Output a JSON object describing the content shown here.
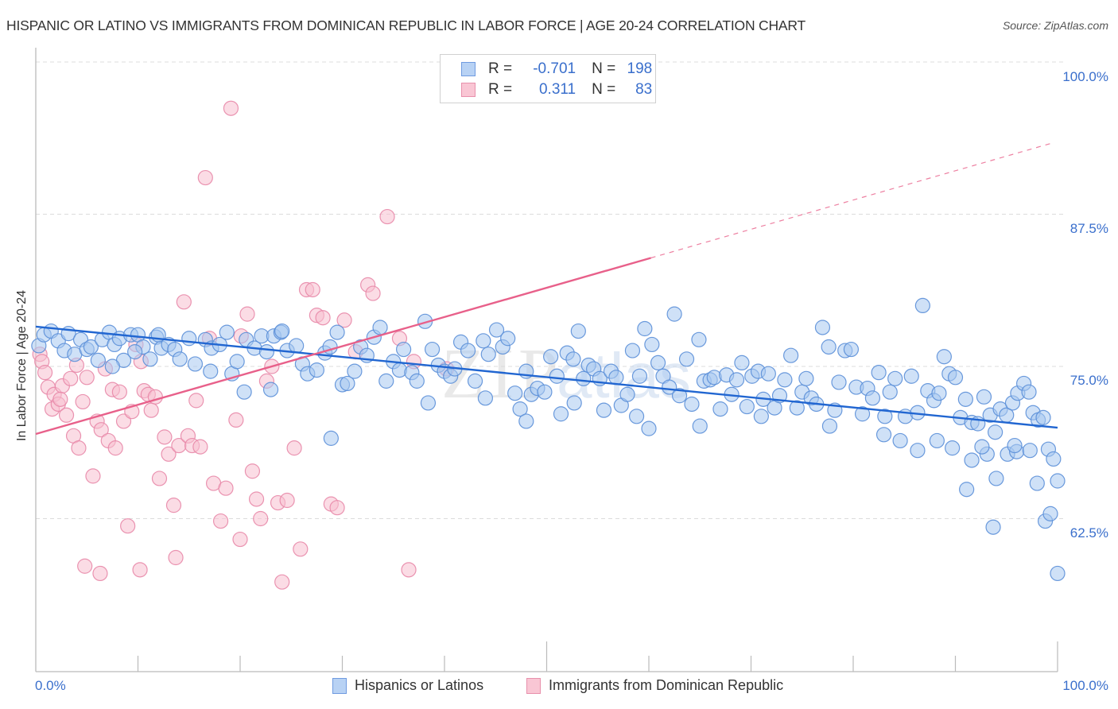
{
  "header": {
    "title": "HISPANIC OR LATINO VS IMMIGRANTS FROM DOMINICAN REPUBLIC IN LABOR FORCE | AGE 20-24 CORRELATION CHART",
    "source": "Source: ZipAtlas.com"
  },
  "legend_box": {
    "rows": [
      {
        "r_label": "R =",
        "r_value": "-0.701",
        "n_label": "N =",
        "n_value": "198"
      },
      {
        "r_label": "R =",
        "r_value": "0.311",
        "n_label": "N =",
        "n_value": "83"
      }
    ]
  },
  "colors": {
    "blue_fill": "#a8c8f0",
    "blue_stroke": "#5b8fd8",
    "blue_line": "#2166d1",
    "pink_fill": "#f8c0d0",
    "pink_stroke": "#e888a8",
    "pink_line": "#e8608a",
    "axis_text": "#3a6fcc"
  },
  "chart_data": {
    "type": "scatter",
    "title": "HISPANIC OR LATINO VS IMMIGRANTS FROM DOMINICAN REPUBLIC IN LABOR FORCE | AGE 20-24 CORRELATION CHART",
    "xlabel": "",
    "ylabel": "In Labor Force | Age 20-24",
    "xlim": [
      0,
      100
    ],
    "ylim": [
      49.9,
      101.2
    ],
    "x_tick_labels": [
      "0.0%",
      "100.0%"
    ],
    "y_ticks": [
      100.0,
      87.5,
      75.0,
      62.5
    ],
    "y_tick_labels": [
      "100.0%",
      "87.5%",
      "75.0%",
      "62.5%"
    ],
    "grid": true,
    "legend_position": "bottom",
    "watermark": "ZIPatlas",
    "series": [
      {
        "name": "Hispanics or Latinos",
        "R": -0.701,
        "N": 198,
        "trend": {
          "x": [
            0,
            100
          ],
          "y": [
            78.27,
            69.97
          ],
          "style": "solid"
        },
        "points": [
          [
            0.3,
            76.7
          ],
          [
            0.8,
            77.6
          ],
          [
            1.5,
            77.9
          ],
          [
            2.2,
            77.1
          ],
          [
            2.8,
            76.3
          ],
          [
            3.2,
            77.7
          ],
          [
            3.8,
            76.0
          ],
          [
            4.4,
            77.2
          ],
          [
            5.0,
            76.4
          ],
          [
            5.4,
            76.6
          ],
          [
            6.1,
            75.5
          ],
          [
            6.5,
            77.2
          ],
          [
            7.2,
            77.8
          ],
          [
            7.7,
            76.8
          ],
          [
            8.2,
            77.3
          ],
          [
            8.6,
            75.5
          ],
          [
            9.3,
            77.6
          ],
          [
            10.0,
            77.6
          ],
          [
            10.5,
            76.6
          ],
          [
            11.2,
            75.6
          ],
          [
            11.8,
            77.4
          ],
          [
            12.3,
            76.5
          ],
          [
            13.0,
            76.8
          ],
          [
            13.6,
            76.4
          ],
          [
            14.1,
            75.6
          ],
          [
            15.0,
            77.3
          ],
          [
            15.6,
            75.2
          ],
          [
            16.6,
            77.2
          ],
          [
            17.2,
            76.5
          ],
          [
            18.0,
            76.8
          ],
          [
            18.7,
            77.8
          ],
          [
            19.2,
            74.4
          ],
          [
            19.7,
            75.4
          ],
          [
            20.6,
            77.2
          ],
          [
            21.4,
            76.5
          ],
          [
            22.1,
            77.5
          ],
          [
            22.6,
            76.2
          ],
          [
            23.3,
            77.5
          ],
          [
            24.0,
            77.8
          ],
          [
            24.6,
            76.3
          ],
          [
            25.5,
            76.7
          ],
          [
            26.1,
            75.2
          ],
          [
            26.6,
            74.4
          ],
          [
            27.5,
            74.7
          ],
          [
            28.3,
            76.1
          ],
          [
            28.8,
            76.6
          ],
          [
            29.5,
            77.8
          ],
          [
            30.0,
            73.5
          ],
          [
            30.5,
            73.6
          ],
          [
            31.2,
            74.6
          ],
          [
            31.8,
            76.6
          ],
          [
            32.4,
            75.9
          ],
          [
            33.1,
            77.4
          ],
          [
            33.7,
            78.2
          ],
          [
            34.3,
            73.8
          ],
          [
            35.0,
            75.4
          ],
          [
            35.6,
            74.7
          ],
          [
            36.0,
            76.4
          ],
          [
            36.8,
            74.5
          ],
          [
            37.3,
            73.8
          ],
          [
            38.1,
            78.7
          ],
          [
            38.8,
            76.4
          ],
          [
            39.4,
            75.1
          ],
          [
            40.0,
            74.6
          ],
          [
            40.6,
            74.2
          ],
          [
            41.0,
            74.8
          ],
          [
            41.6,
            77.0
          ],
          [
            42.3,
            76.3
          ],
          [
            43.0,
            73.8
          ],
          [
            43.8,
            77.1
          ],
          [
            44.3,
            76.0
          ],
          [
            45.1,
            78.0
          ],
          [
            45.7,
            76.6
          ],
          [
            46.2,
            77.3
          ],
          [
            46.9,
            72.8
          ],
          [
            47.4,
            71.5
          ],
          [
            48.0,
            74.6
          ],
          [
            48.5,
            72.7
          ],
          [
            49.1,
            73.2
          ],
          [
            49.8,
            72.9
          ],
          [
            50.4,
            75.8
          ],
          [
            51.0,
            74.2
          ],
          [
            51.4,
            71.1
          ],
          [
            52.0,
            76.1
          ],
          [
            52.6,
            75.6
          ],
          [
            53.1,
            77.9
          ],
          [
            53.6,
            74.0
          ],
          [
            54.1,
            75.1
          ],
          [
            54.6,
            74.8
          ],
          [
            55.2,
            74.0
          ],
          [
            55.6,
            71.4
          ],
          [
            56.3,
            74.6
          ],
          [
            56.8,
            74.1
          ],
          [
            57.3,
            71.8
          ],
          [
            57.9,
            72.7
          ],
          [
            58.4,
            76.3
          ],
          [
            59.1,
            74.2
          ],
          [
            59.6,
            78.1
          ],
          [
            60.3,
            76.8
          ],
          [
            60.9,
            75.3
          ],
          [
            61.4,
            74.2
          ],
          [
            62.0,
            73.3
          ],
          [
            62.5,
            79.3
          ],
          [
            63.0,
            72.6
          ],
          [
            63.7,
            75.6
          ],
          [
            64.2,
            71.9
          ],
          [
            64.9,
            77.2
          ],
          [
            65.4,
            73.8
          ],
          [
            66.0,
            73.9
          ],
          [
            66.4,
            74.1
          ],
          [
            67.0,
            71.5
          ],
          [
            67.6,
            74.3
          ],
          [
            68.1,
            72.7
          ],
          [
            68.6,
            73.9
          ],
          [
            69.1,
            75.3
          ],
          [
            69.6,
            71.7
          ],
          [
            70.1,
            74.2
          ],
          [
            70.7,
            74.6
          ],
          [
            71.2,
            72.3
          ],
          [
            71.7,
            74.4
          ],
          [
            72.3,
            71.6
          ],
          [
            72.8,
            72.6
          ],
          [
            73.3,
            73.9
          ],
          [
            73.9,
            75.9
          ],
          [
            74.5,
            71.6
          ],
          [
            75.0,
            72.9
          ],
          [
            75.4,
            74.0
          ],
          [
            75.9,
            72.4
          ],
          [
            76.4,
            71.9
          ],
          [
            77.0,
            78.2
          ],
          [
            77.6,
            76.6
          ],
          [
            78.2,
            71.4
          ],
          [
            78.6,
            73.7
          ],
          [
            79.2,
            76.3
          ],
          [
            79.8,
            76.4
          ],
          [
            80.3,
            73.3
          ],
          [
            80.9,
            71.1
          ],
          [
            81.4,
            73.2
          ],
          [
            81.9,
            72.4
          ],
          [
            82.5,
            74.5
          ],
          [
            83.1,
            70.9
          ],
          [
            83.6,
            72.9
          ],
          [
            84.1,
            74.0
          ],
          [
            84.6,
            68.9
          ],
          [
            85.1,
            70.9
          ],
          [
            85.7,
            74.2
          ],
          [
            86.3,
            71.2
          ],
          [
            86.8,
            80.0
          ],
          [
            87.3,
            73.0
          ],
          [
            87.9,
            72.2
          ],
          [
            88.4,
            72.8
          ],
          [
            88.9,
            75.8
          ],
          [
            89.4,
            74.4
          ],
          [
            90.0,
            74.1
          ],
          [
            90.5,
            70.8
          ],
          [
            91.0,
            72.3
          ],
          [
            91.6,
            70.4
          ],
          [
            92.2,
            70.3
          ],
          [
            92.8,
            72.5
          ],
          [
            93.4,
            71.0
          ],
          [
            93.9,
            69.6
          ],
          [
            94.4,
            71.5
          ],
          [
            95.0,
            71.0
          ],
          [
            95.6,
            72.0
          ],
          [
            96.1,
            72.8
          ],
          [
            96.7,
            73.6
          ],
          [
            97.2,
            72.9
          ],
          [
            97.6,
            71.2
          ],
          [
            98.1,
            70.6
          ],
          [
            98.6,
            70.8
          ],
          [
            99.1,
            68.2
          ],
          [
            99.6,
            67.4
          ],
          [
            100.0,
            65.6
          ],
          [
            91.6,
            67.3
          ],
          [
            93.1,
            67.8
          ],
          [
            94.0,
            65.8
          ],
          [
            95.1,
            67.8
          ],
          [
            96.0,
            68.0
          ],
          [
            97.3,
            68.1
          ],
          [
            98.0,
            65.4
          ],
          [
            98.8,
            62.3
          ],
          [
            99.3,
            62.9
          ],
          [
            100.0,
            58.0
          ],
          [
            93.7,
            61.8
          ],
          [
            95.8,
            68.5
          ],
          [
            91.1,
            64.9
          ],
          [
            92.6,
            68.4
          ],
          [
            89.7,
            68.3
          ],
          [
            88.2,
            68.9
          ],
          [
            86.3,
            68.1
          ],
          [
            28.9,
            69.1
          ],
          [
            20.4,
            72.9
          ],
          [
            24.1,
            77.9
          ],
          [
            12.0,
            77.6
          ],
          [
            9.7,
            76.2
          ],
          [
            7.5,
            75.0
          ],
          [
            17.1,
            74.6
          ],
          [
            23.0,
            73.1
          ],
          [
            44.0,
            72.4
          ],
          [
            38.4,
            72.0
          ],
          [
            52.7,
            72.0
          ],
          [
            58.8,
            70.9
          ],
          [
            65.0,
            70.1
          ],
          [
            71.0,
            70.9
          ],
          [
            77.7,
            70.1
          ],
          [
            83.0,
            69.4
          ],
          [
            60.0,
            69.9
          ],
          [
            48.0,
            70.5
          ]
        ]
      },
      {
        "name": "Immigrants from Dominican Republic",
        "R": 0.311,
        "N": 83,
        "trend": {
          "x": [
            0,
            100
          ],
          "y": [
            69.45,
            93.47
          ],
          "solid_until_x": 60.2,
          "style": "solid-then-dashed"
        },
        "points": [
          [
            0.4,
            76.0
          ],
          [
            0.6,
            75.4
          ],
          [
            0.9,
            74.5
          ],
          [
            1.2,
            73.3
          ],
          [
            1.6,
            71.5
          ],
          [
            1.8,
            72.7
          ],
          [
            2.2,
            71.9
          ],
          [
            2.6,
            73.4
          ],
          [
            3.0,
            71.0
          ],
          [
            3.4,
            74.0
          ],
          [
            3.7,
            69.3
          ],
          [
            4.0,
            75.1
          ],
          [
            4.2,
            68.3
          ],
          [
            4.6,
            72.1
          ],
          [
            5.0,
            74.1
          ],
          [
            5.6,
            66.0
          ],
          [
            6.0,
            70.5
          ],
          [
            6.4,
            69.8
          ],
          [
            6.8,
            74.8
          ],
          [
            7.1,
            68.9
          ],
          [
            7.5,
            73.1
          ],
          [
            7.8,
            68.3
          ],
          [
            8.2,
            72.9
          ],
          [
            8.6,
            70.5
          ],
          [
            9.0,
            61.9
          ],
          [
            9.4,
            71.3
          ],
          [
            9.8,
            76.8
          ],
          [
            10.3,
            75.4
          ],
          [
            10.6,
            73.0
          ],
          [
            11.0,
            72.7
          ],
          [
            11.3,
            71.4
          ],
          [
            11.7,
            72.5
          ],
          [
            12.1,
            65.8
          ],
          [
            12.6,
            69.2
          ],
          [
            13.0,
            67.8
          ],
          [
            13.5,
            63.6
          ],
          [
            14.0,
            68.5
          ],
          [
            14.5,
            80.3
          ],
          [
            14.9,
            69.3
          ],
          [
            15.3,
            68.5
          ],
          [
            15.7,
            72.2
          ],
          [
            16.1,
            68.4
          ],
          [
            16.6,
            90.5
          ],
          [
            17.0,
            77.3
          ],
          [
            17.4,
            65.4
          ],
          [
            18.1,
            62.3
          ],
          [
            18.6,
            65.0
          ],
          [
            19.1,
            96.2
          ],
          [
            19.6,
            70.6
          ],
          [
            20.1,
            77.5
          ],
          [
            20.7,
            79.3
          ],
          [
            21.2,
            66.4
          ],
          [
            21.6,
            64.1
          ],
          [
            22.0,
            62.5
          ],
          [
            22.6,
            73.8
          ],
          [
            23.1,
            75.0
          ],
          [
            23.7,
            63.8
          ],
          [
            24.1,
            57.3
          ],
          [
            24.6,
            64.0
          ],
          [
            25.3,
            68.3
          ],
          [
            25.9,
            60.0
          ],
          [
            26.5,
            81.3
          ],
          [
            27.1,
            81.3
          ],
          [
            27.5,
            79.2
          ],
          [
            28.1,
            79.0
          ],
          [
            28.9,
            63.7
          ],
          [
            29.5,
            63.4
          ],
          [
            30.2,
            78.8
          ],
          [
            31.3,
            76.2
          ],
          [
            32.5,
            81.7
          ],
          [
            33.0,
            81.0
          ],
          [
            34.4,
            87.3
          ],
          [
            35.6,
            77.3
          ],
          [
            36.5,
            58.3
          ],
          [
            37.0,
            75.4
          ],
          [
            40.2,
            74.8
          ],
          [
            58.6,
            99.8
          ],
          [
            6.3,
            58.0
          ],
          [
            4.8,
            58.6
          ],
          [
            2.4,
            72.3
          ],
          [
            10.2,
            58.3
          ],
          [
            13.7,
            59.3
          ],
          [
            20.0,
            60.8
          ]
        ]
      }
    ]
  },
  "bottom_legend": {
    "items": [
      {
        "label": "Hispanics or Latinos"
      },
      {
        "label": "Immigrants from Dominican Republic"
      }
    ]
  },
  "axis": {
    "x_min_label": "0.0%",
    "x_max_label": "100.0%",
    "y_labels": [
      "100.0%",
      "87.5%",
      "75.0%",
      "62.5%"
    ]
  }
}
